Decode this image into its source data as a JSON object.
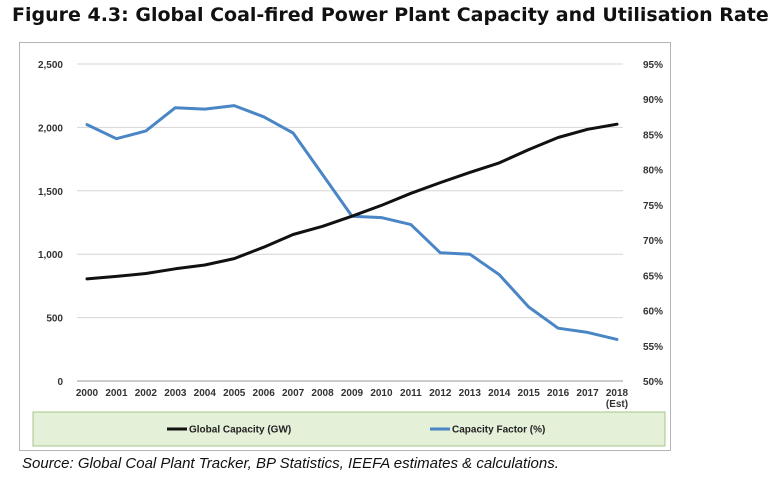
{
  "title": "Figure 4.3: Global Coal-fired Power Plant Capacity and Utilisation Rate",
  "source": "Source: Global Coal Plant Tracker, BP Statistics, IEEFA estimates & calculations.",
  "chart_data": {
    "type": "line",
    "title": "",
    "categories": [
      "2000",
      "2001",
      "2002",
      "2003",
      "2004",
      "2005",
      "2006",
      "2007",
      "2008",
      "2009",
      "2010",
      "2011",
      "2012",
      "2013",
      "2014",
      "2015",
      "2016",
      "2017",
      "2018"
    ],
    "category_sublabels": {
      "2018": "(Est)"
    },
    "y_left": {
      "min": 0,
      "max": 2500,
      "ticks": [
        0,
        500,
        1000,
        1500,
        2000,
        2500
      ],
      "tick_labels": [
        "0",
        "500",
        "1,000",
        "1,500",
        "2,000",
        "2,500"
      ]
    },
    "y_right": {
      "min": 50,
      "max": 95,
      "ticks": [
        50,
        55,
        60,
        65,
        70,
        75,
        80,
        85,
        90,
        95
      ],
      "tick_labels": [
        "50%",
        "55%",
        "60%",
        "65%",
        "70%",
        "75%",
        "80%",
        "85%",
        "90%",
        "95%"
      ]
    },
    "grid": "horizontal",
    "legend": "bottom",
    "series": [
      {
        "name": "Global Capacity (GW)",
        "axis": "left",
        "color": "#111111",
        "values": [
          805,
          825,
          848,
          885,
          915,
          965,
          1055,
          1155,
          1220,
          1300,
          1385,
          1480,
          1565,
          1645,
          1720,
          1825,
          1920,
          1985,
          2025
        ]
      },
      {
        "name": "Capacity Factor (%)",
        "axis": "right",
        "color": "#4a86c5",
        "values": [
          86.4,
          84.4,
          85.5,
          88.8,
          88.6,
          89.1,
          87.5,
          85.2,
          79.3,
          73.4,
          73.2,
          72.2,
          68.2,
          68.0,
          65.1,
          60.5,
          57.5,
          56.9,
          55.9
        ]
      }
    ]
  }
}
